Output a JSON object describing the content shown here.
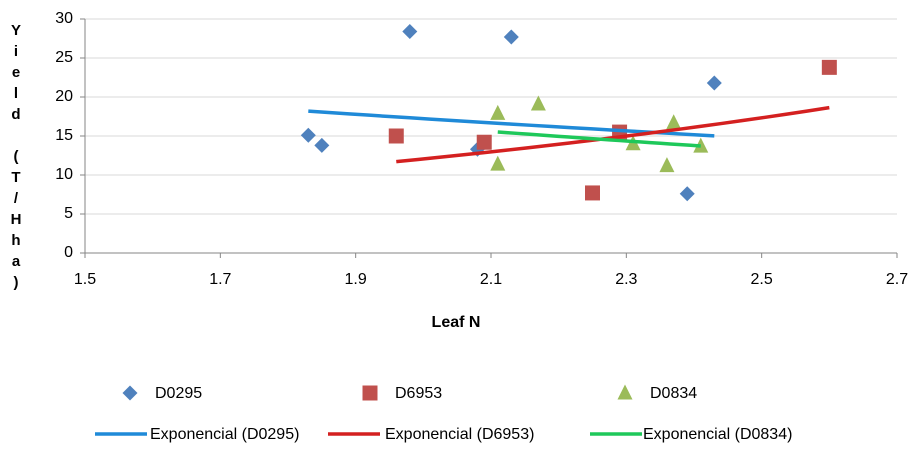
{
  "chart_data": {
    "type": "scatter",
    "x_label": "Leaf N",
    "y_label": "Yield (T/Hha)",
    "xlim": [
      1.5,
      2.7
    ],
    "xticks": [
      1.5,
      1.7,
      1.9,
      2.1,
      2.3,
      2.5,
      2.7
    ],
    "ylim": [
      0,
      30
    ],
    "yticks": [
      0,
      5,
      10,
      15,
      20,
      25,
      30
    ],
    "grid": true,
    "series": [
      {
        "name": "D0295",
        "color": "#4f81bd",
        "marker": "diamond",
        "x": [
          1.83,
          1.85,
          1.98,
          2.08,
          2.13,
          2.39,
          2.43
        ],
        "values": [
          15.1,
          13.8,
          28.4,
          13.3,
          27.7,
          7.6,
          21.8
        ],
        "trendline": {
          "name": "Exponencial (D0295)",
          "color": "#1f8ad8"
        }
      },
      {
        "name": "D6953",
        "color": "#c0504d",
        "marker": "square",
        "x": [
          1.96,
          2.09,
          2.25,
          2.29,
          2.6
        ],
        "values": [
          15.0,
          14.2,
          7.7,
          15.5,
          23.8
        ],
        "trendline": {
          "name": "Exponencial (D6953)",
          "color": "#d42020"
        }
      },
      {
        "name": "D0834",
        "color": "#9bbb59",
        "marker": "triangle",
        "x": [
          2.11,
          2.11,
          2.17,
          2.31,
          2.36,
          2.37,
          2.41
        ],
        "values": [
          17.9,
          11.4,
          19.1,
          14.0,
          11.2,
          16.7,
          13.7
        ],
        "trendline": {
          "name": "Exponencial (D0834)",
          "color": "#1ec85a"
        }
      }
    ]
  }
}
